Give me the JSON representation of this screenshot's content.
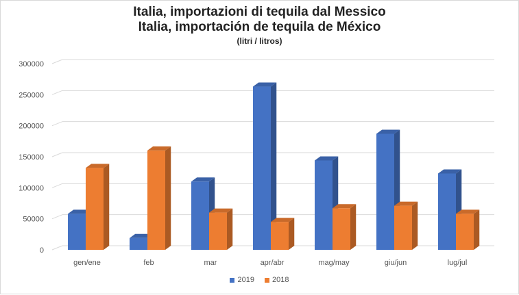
{
  "chart_data": {
    "type": "bar",
    "title": "Italia, importazioni di tequila dal Messico",
    "subtitle": "Italia, importación de tequila de México",
    "unit": "(litri / litros)",
    "categories": [
      "gen/ene",
      "feb",
      "mar",
      "apr/abr",
      "mag/may",
      "giu/jun",
      "lug/jul"
    ],
    "series": [
      {
        "name": "2019",
        "color": "#4472c4",
        "values": [
          58000,
          19000,
          110000,
          263000,
          144000,
          187000,
          123000
        ]
      },
      {
        "name": "2018",
        "color": "#ed7d31",
        "values": [
          132000,
          160000,
          60000,
          45000,
          67000,
          71000,
          58000
        ]
      }
    ],
    "ylim": [
      0,
      300000
    ],
    "yticks": [
      "0",
      "50000",
      "100000",
      "150000",
      "200000",
      "250000",
      "300000"
    ],
    "grid": true,
    "legend_position": "bottom"
  }
}
